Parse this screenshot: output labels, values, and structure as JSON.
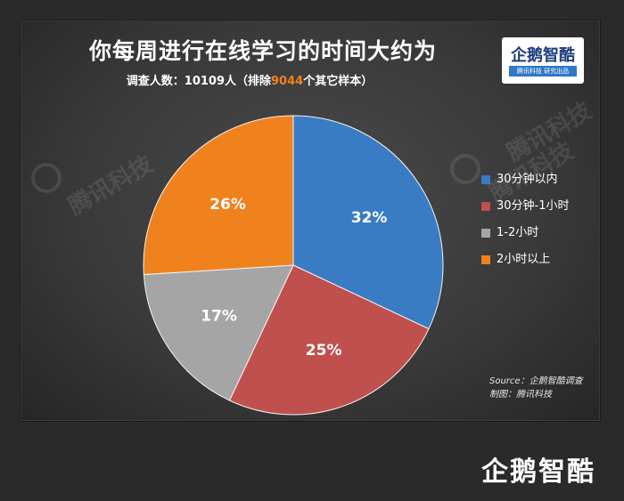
{
  "title": "你每周进行在线学习的时间大约为",
  "subtitle_prefix": "调查人数：10109人（排除",
  "subtitle_highlight": "9044",
  "subtitle_suffix": "个其它样本）",
  "logo": {
    "brand": "企鹅智酷",
    "tag": "腾讯科技  研究出品"
  },
  "watermark_text": "腾讯科技",
  "source_line1": "Source：企鹅智酷调查",
  "source_line2": "制图：腾讯科技",
  "footer_logo": "企鹅智酷",
  "colors": {
    "blue": "#3a7cc4",
    "red": "#c0504d",
    "gray": "#a5a5a5",
    "orange": "#f0821e",
    "highlight": "#f0821e"
  },
  "chart_data": {
    "type": "pie",
    "title": "你每周进行在线学习的时间大约为",
    "categories": [
      "30分钟以内",
      "30分钟-1小时",
      "1-2小时",
      "2小时以上"
    ],
    "values": [
      32,
      25,
      17,
      26
    ],
    "labels": [
      "32%",
      "25%",
      "17%",
      "26%"
    ],
    "colors": [
      "#3a7cc4",
      "#c0504d",
      "#a5a5a5",
      "#f0821e"
    ],
    "start_angle_deg": 0,
    "direction": "clockwise",
    "legend_position": "right"
  }
}
